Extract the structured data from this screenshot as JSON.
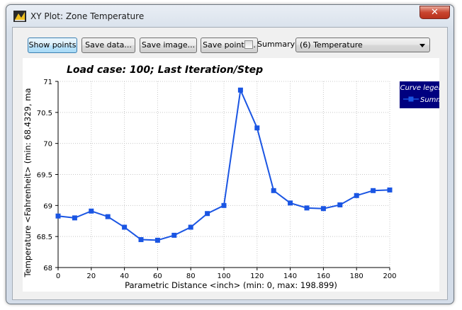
{
  "window": {
    "title": "XY Plot: Zone Temperature",
    "close_label": "✕"
  },
  "toolbar": {
    "show_points_label": "Show points",
    "save_data_label": "Save data...",
    "save_image_label": "Save image...",
    "save_points_label": "Save points...",
    "summary_label": "Summary",
    "summary_checked": false,
    "variable_select_value": "(6) Temperature"
  },
  "colors": {
    "series": "#1a55e3",
    "legend_bg": "#00007f",
    "grid": "#c8c8c8"
  },
  "chart_data": {
    "type": "line",
    "title": "Load case: 100; Last Iteration/Step",
    "xlabel": "Parametric Distance <inch> (min: 0, max: 198.899)",
    "ylabel": "Temperature <Fahrenheit> (min: 68.4329, ma",
    "xlim": [
      0,
      200
    ],
    "ylim": [
      68,
      71
    ],
    "x_ticks": [
      "0",
      "20",
      "40",
      "60",
      "80",
      "100",
      "120",
      "140",
      "160",
      "180",
      "200"
    ],
    "y_ticks": [
      "68",
      "68.5",
      "69",
      "69.5",
      "70",
      "70.5",
      "71"
    ],
    "grid": true,
    "legend_title": "Curve legend",
    "legend_position": "top-right",
    "series": [
      {
        "name": "Summer",
        "x": [
          0,
          10,
          20,
          30,
          40,
          50,
          60,
          70,
          80,
          90,
          100,
          110,
          120,
          130,
          140,
          150,
          160,
          170,
          180,
          190,
          200
        ],
        "values": [
          68.83,
          68.8,
          68.91,
          68.82,
          68.65,
          68.45,
          68.44,
          68.52,
          68.65,
          68.87,
          69.0,
          70.86,
          70.25,
          69.24,
          69.04,
          68.96,
          68.95,
          69.01,
          69.16,
          69.24,
          69.25
        ]
      }
    ]
  }
}
